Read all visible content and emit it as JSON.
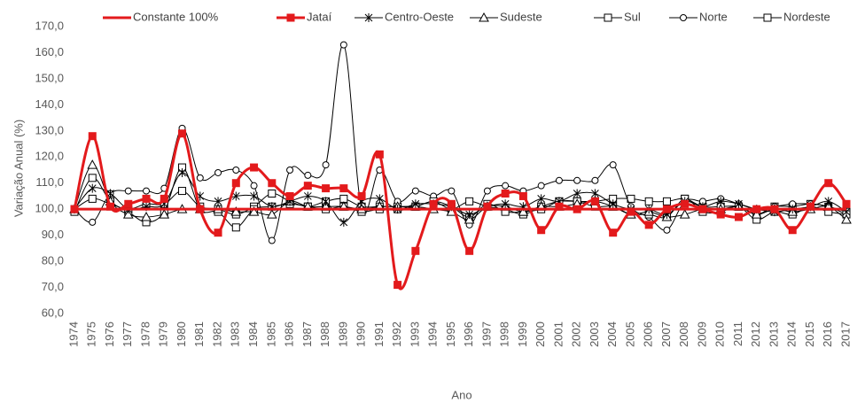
{
  "chart_data": {
    "type": "line",
    "y_label": "Variação Anual (%)",
    "x_label": "Ano",
    "categories": [
      "1974",
      "1975",
      "1976",
      "1977",
      "1978",
      "1979",
      "1980",
      "1981",
      "1982",
      "1983",
      "1984",
      "1985",
      "1986",
      "1987",
      "1988",
      "1989",
      "1990",
      "1991",
      "1992",
      "1993",
      "1994",
      "1995",
      "1996",
      "1997",
      "1998",
      "1999",
      "2000",
      "2001",
      "2002",
      "2003",
      "2004",
      "2005",
      "2006",
      "2007",
      "2008",
      "2009",
      "2010",
      "2011",
      "2012",
      "2013",
      "2014",
      "2015",
      "2016",
      "2017"
    ],
    "ylim": [
      60,
      170
    ],
    "yticks": [
      {
        "value": 60,
        "label": "60,0"
      },
      {
        "value": 70,
        "label": "70,0"
      },
      {
        "value": 80,
        "label": "80,0"
      },
      {
        "value": 90,
        "label": "90,0"
      },
      {
        "value": 100,
        "label": "100,0"
      },
      {
        "value": 110,
        "label": "110,0"
      },
      {
        "value": 120,
        "label": "120,0"
      },
      {
        "value": 130,
        "label": "130,0"
      },
      {
        "value": 140,
        "label": "140,0"
      },
      {
        "value": 150,
        "label": "150,0"
      },
      {
        "value": 160,
        "label": "160,0"
      },
      {
        "value": 170,
        "label": "170,0"
      }
    ],
    "grid": false,
    "legend": "top",
    "series": [
      {
        "name": "Constante 100%",
        "color": "#e31a1c",
        "marker": "none",
        "values": [
          100,
          100,
          100,
          100,
          100,
          100,
          100,
          100,
          100,
          100,
          100,
          100,
          100,
          100,
          100,
          100,
          100,
          100,
          100,
          100,
          100,
          100,
          100,
          100,
          100,
          100,
          100,
          100,
          100,
          100,
          100,
          100,
          100,
          100,
          100,
          100,
          100,
          100,
          100,
          100,
          100,
          100,
          100,
          100
        ]
      },
      {
        "name": "Jataí",
        "color": "#e31a1c",
        "marker": "square",
        "values": [
          100,
          128,
          101,
          102,
          104,
          104,
          129,
          100,
          91,
          110,
          116,
          110,
          105,
          109,
          108,
          108,
          105,
          121,
          71,
          84,
          102,
          102,
          84,
          101,
          106,
          105,
          92,
          101,
          100,
          103,
          91,
          99,
          94,
          100,
          102,
          100,
          98,
          97,
          100,
          100,
          92,
          101,
          110,
          102
        ]
      },
      {
        "name": "Centro-Oeste",
        "color": "#000000",
        "marker": "star",
        "values": [
          100,
          108,
          106,
          100,
          101,
          102,
          114,
          105,
          103,
          105,
          105,
          101,
          103,
          105,
          103,
          95,
          103,
          104,
          100,
          102,
          102,
          101,
          98,
          101,
          102,
          101,
          104,
          103,
          106,
          106,
          102,
          100,
          100,
          98,
          103,
          101,
          103,
          102,
          100,
          99,
          100,
          101,
          103,
          99
        ]
      },
      {
        "name": "Sudeste",
        "color": "#000000",
        "marker": "triangle",
        "values": [
          100,
          117,
          103,
          98,
          97,
          98,
          100,
          100,
          100,
          99,
          99,
          98,
          103,
          101,
          101,
          101,
          100,
          101,
          101,
          101,
          100,
          99,
          96,
          101,
          101,
          99,
          101,
          101,
          102,
          103,
          101,
          98,
          99,
          97,
          98,
          100,
          100,
          101,
          98,
          100,
          99,
          100,
          101,
          96
        ]
      },
      {
        "name": "Sul",
        "color": "#000000",
        "marker": "square",
        "values": [
          99,
          112,
          103,
          99,
          95,
          99,
          116,
          100,
          99,
          93,
          100,
          101,
          102,
          101,
          100,
          101,
          99,
          100,
          100,
          101,
          103,
          101,
          97,
          102,
          99,
          99,
          100,
          103,
          103,
          101,
          101,
          98,
          98,
          97,
          104,
          99,
          99,
          101,
          96,
          99,
          98,
          101,
          99,
          98
        ]
      },
      {
        "name": "Norte",
        "color": "#000000",
        "marker": "circle",
        "values": [
          100,
          95,
          106,
          107,
          107,
          108,
          131,
          112,
          114,
          115,
          109,
          88,
          115,
          113,
          117,
          163,
          100,
          115,
          103,
          107,
          105,
          107,
          94,
          107,
          109,
          107,
          109,
          111,
          111,
          111,
          117,
          101,
          97,
          92,
          103,
          103,
          104,
          102,
          100,
          101,
          102,
          102,
          101,
          98
        ]
      },
      {
        "name": "Nordeste",
        "color": "#000000",
        "marker": "square",
        "values": [
          100,
          104,
          102,
          100,
          102,
          102,
          107,
          101,
          100,
          98,
          101,
          106,
          103,
          101,
          103,
          104,
          101,
          101,
          101,
          101,
          103,
          100,
          103,
          101,
          100,
          98,
          101,
          103,
          103,
          103,
          104,
          104,
          103,
          103,
          104,
          101,
          101,
          101,
          98,
          101,
          101,
          102,
          101,
          99
        ]
      }
    ]
  }
}
